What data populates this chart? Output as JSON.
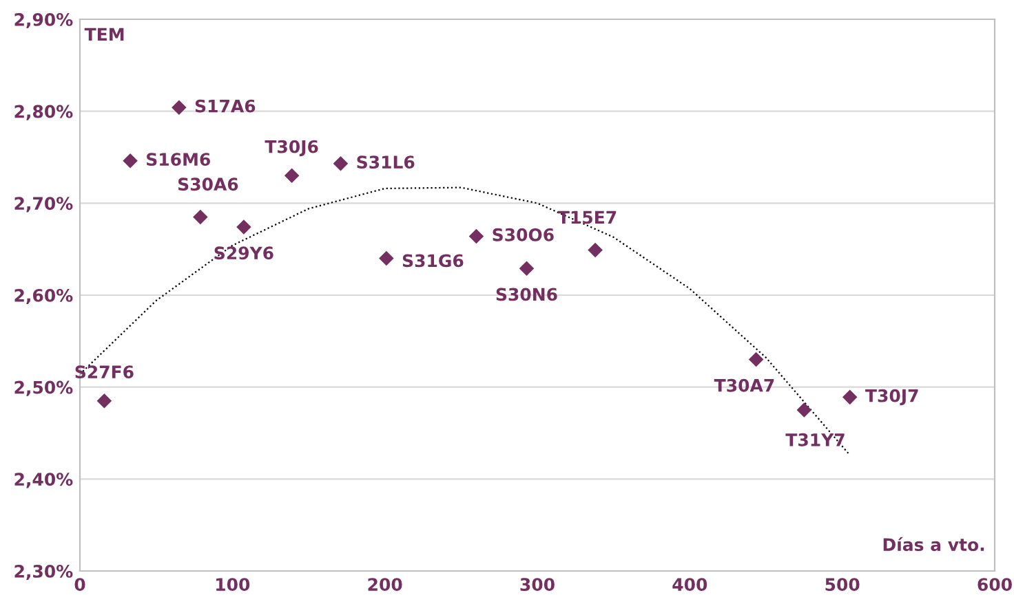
{
  "chart_data": {
    "type": "scatter",
    "xlabel": "Días a vto.",
    "ylabel": "TEM",
    "x": [
      16,
      33,
      65,
      79,
      107.5,
      139,
      171,
      201,
      260,
      293,
      338,
      443.5,
      475,
      505
    ],
    "series": [
      {
        "type": "scatter",
        "color": "#722f5f",
        "marker": "diamond",
        "values": [
          2.485,
          2.746,
          2.804,
          2.685,
          2.674,
          2.73,
          2.743,
          2.64,
          2.664,
          2.629,
          2.649,
          2.53,
          2.475,
          2.489
        ]
      },
      {
        "type": "line",
        "color": "#000000",
        "line_style": "dotted",
        "x": [
          0,
          50,
          100,
          150,
          200,
          250,
          300,
          350,
          400,
          450,
          505
        ],
        "values": [
          2.514,
          2.594,
          2.654,
          2.694,
          2.716,
          2.717,
          2.7,
          2.663,
          2.607,
          2.532,
          2.426
        ]
      }
    ],
    "annotations": [
      {
        "text": "S27F6",
        "x": 16,
        "y": 2.485
      },
      {
        "text": "S16M6",
        "x": 33,
        "y": 2.746
      },
      {
        "text": "S17A6",
        "x": 65,
        "y": 2.804
      },
      {
        "text": "S30A6",
        "x": 79,
        "y": 2.685
      },
      {
        "text": "S29Y6",
        "x": 107.5,
        "y": 2.674
      },
      {
        "text": "T30J6",
        "x": 139,
        "y": 2.73
      },
      {
        "text": "S31L6",
        "x": 171,
        "y": 2.743
      },
      {
        "text": "S31G6",
        "x": 201,
        "y": 2.64
      },
      {
        "text": "S30O6",
        "x": 260,
        "y": 2.664
      },
      {
        "text": "S30N6",
        "x": 293,
        "y": 2.629
      },
      {
        "text": "T15E7",
        "x": 338,
        "y": 2.649
      },
      {
        "text": "T30A7",
        "x": 443.5,
        "y": 2.53
      },
      {
        "text": "T31Y7",
        "x": 475,
        "y": 2.475
      },
      {
        "text": "T30J7",
        "x": 505,
        "y": 2.489
      }
    ],
    "xlim": [
      0,
      600
    ],
    "xticks": [
      0,
      100,
      200,
      300,
      400,
      500,
      600
    ],
    "ylim": [
      2.3,
      2.9
    ],
    "yticks": [
      {
        "value": 2.3,
        "label": "2,30%"
      },
      {
        "value": 2.4,
        "label": "2,40%"
      },
      {
        "value": 2.5,
        "label": "2,50%"
      },
      {
        "value": 2.6,
        "label": "2,60%"
      },
      {
        "value": 2.7,
        "label": "2,70%"
      },
      {
        "value": 2.8,
        "label": "2,80%"
      },
      {
        "value": 2.9,
        "label": "2,90%"
      }
    ],
    "grid": "y",
    "legend": false
  }
}
